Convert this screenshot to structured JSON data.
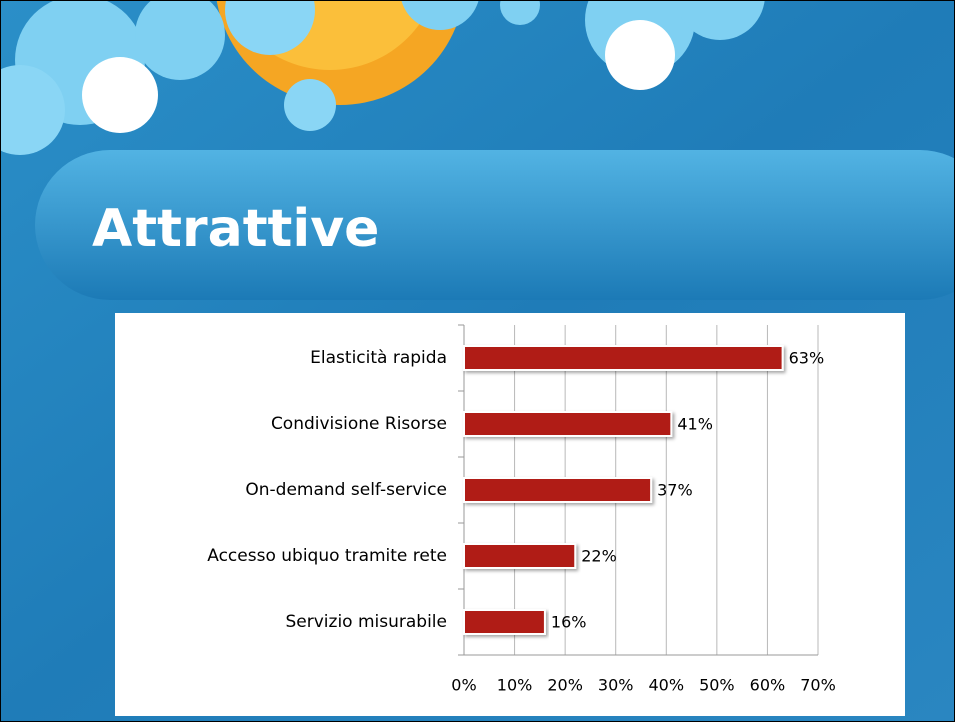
{
  "chart_data": {
    "type": "barh",
    "title": "Attrattive",
    "categories": [
      "Elasticità rapida",
      "Condivisione Risorse",
      "On-demand self-service",
      "Accesso ubiquo tramite rete",
      "Servizio misurabile"
    ],
    "values": [
      63,
      41,
      37,
      22,
      16
    ],
    "value_labels": [
      "63%",
      "41%",
      "37%",
      "22%",
      "16%"
    ],
    "color": "#b01c12",
    "xlim": [
      0,
      70
    ],
    "xticks": [
      {
        "value": 0,
        "label": "0%"
      },
      {
        "value": 10,
        "label": "10%"
      },
      {
        "value": 20,
        "label": "20%"
      },
      {
        "value": 30,
        "label": "30%"
      },
      {
        "value": 40,
        "label": "40%"
      },
      {
        "value": 50,
        "label": "50%"
      },
      {
        "value": 60,
        "label": "60%"
      },
      {
        "value": 70,
        "label": "70%"
      }
    ],
    "grid": true
  }
}
